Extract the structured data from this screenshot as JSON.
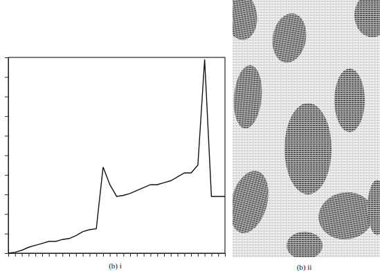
{
  "chart_data": [
    {
      "type": "line",
      "title": "(b) i",
      "x": [
        0,
        1,
        2,
        3,
        4,
        5,
        6,
        7,
        8,
        9,
        10,
        11,
        12,
        13,
        14,
        15,
        16,
        17,
        18,
        19,
        20,
        21,
        22,
        23,
        24,
        25,
        26,
        27,
        28,
        29,
        30,
        31,
        32
      ],
      "values": [
        0,
        0.5,
        1.5,
        3,
        4,
        5,
        6,
        6,
        7,
        7.5,
        9,
        11,
        12,
        12.5,
        44,
        35,
        29,
        29.5,
        30.5,
        32,
        33.5,
        35,
        35,
        36,
        37,
        39,
        41,
        41,
        45,
        99,
        29,
        29,
        29
      ],
      "color": "#111111",
      "xlim": [
        0,
        32
      ],
      "ylim": [
        0,
        100
      ],
      "xticks": [
        0,
        1,
        2,
        3,
        4,
        5,
        6,
        7,
        8,
        9,
        10,
        11,
        12,
        13,
        14,
        15,
        16,
        17,
        18,
        19,
        20,
        21,
        22,
        23,
        24,
        25,
        26,
        27,
        28,
        29,
        30,
        31,
        32
      ],
      "yticks": [
        0,
        10,
        20,
        30,
        40,
        50,
        60,
        70,
        80,
        90,
        100
      ],
      "tick_labels": false,
      "grid": false
    },
    {
      "type": "image",
      "title": "(b) ii"
    }
  ]
}
